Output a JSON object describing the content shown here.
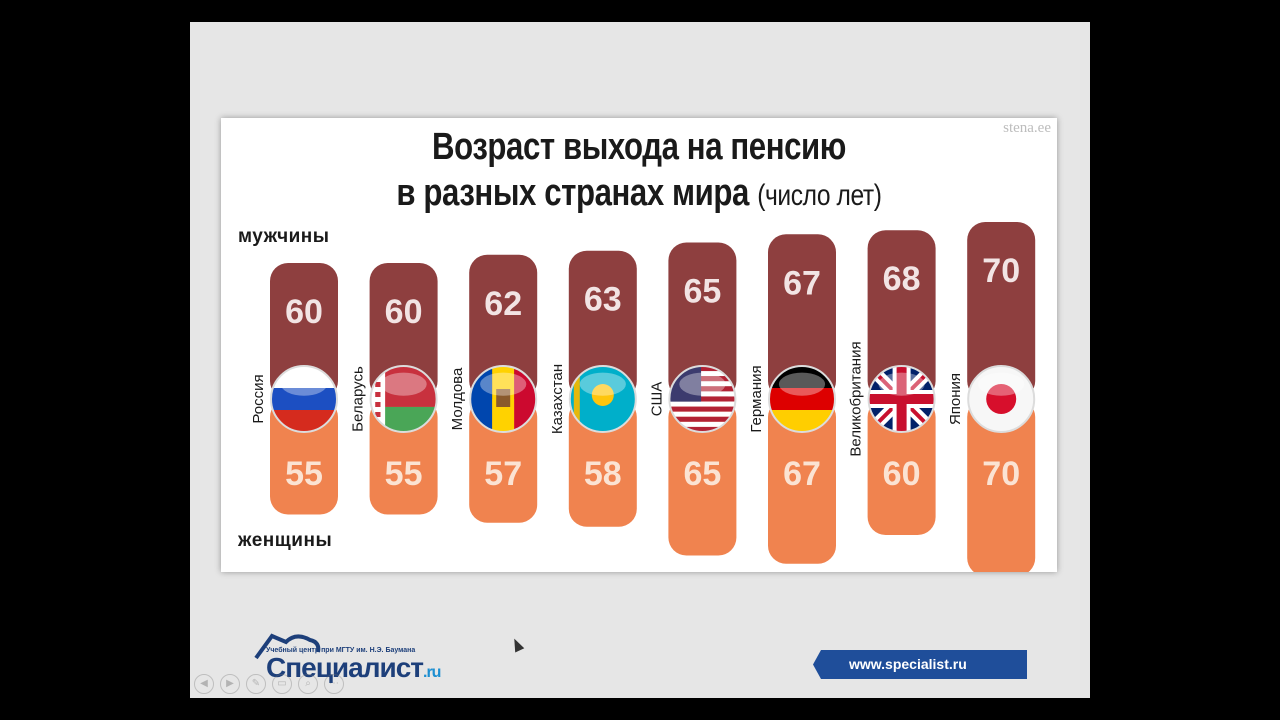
{
  "chart_data": {
    "type": "bar",
    "title_line1": "Возраст выхода на пенсию",
    "title_line2": "в разных странах мира",
    "title_unit": "(число лет)",
    "watermark": "stena.ee",
    "men_label": "мужчины",
    "women_label": "женщины",
    "categories": [
      "Россия",
      "Беларусь",
      "Молдова",
      "Казахстан",
      "США",
      "Германия",
      "Великобритания",
      "Япония"
    ],
    "series": [
      {
        "name": "мужчины",
        "values": [
          60,
          60,
          62,
          63,
          65,
          67,
          68,
          70
        ],
        "color": "#8e3f3f"
      },
      {
        "name": "женщины",
        "values": [
          55,
          55,
          57,
          58,
          65,
          67,
          60,
          70
        ],
        "color": "#f0834f"
      }
    ],
    "flags": [
      "russia-flag-icon",
      "belarus-flag-icon",
      "moldova-flag-icon",
      "kazakhstan-flag-icon",
      "usa-flag-icon",
      "germany-flag-icon",
      "uk-flag-icon",
      "japan-flag-icon"
    ]
  },
  "footer": {
    "logo_caption": "Учебный центр при МГТУ им. Н.Э. Баумана",
    "logo_name": "Специалист",
    "logo_domain": ".ru",
    "site": "www.specialist.ru"
  }
}
